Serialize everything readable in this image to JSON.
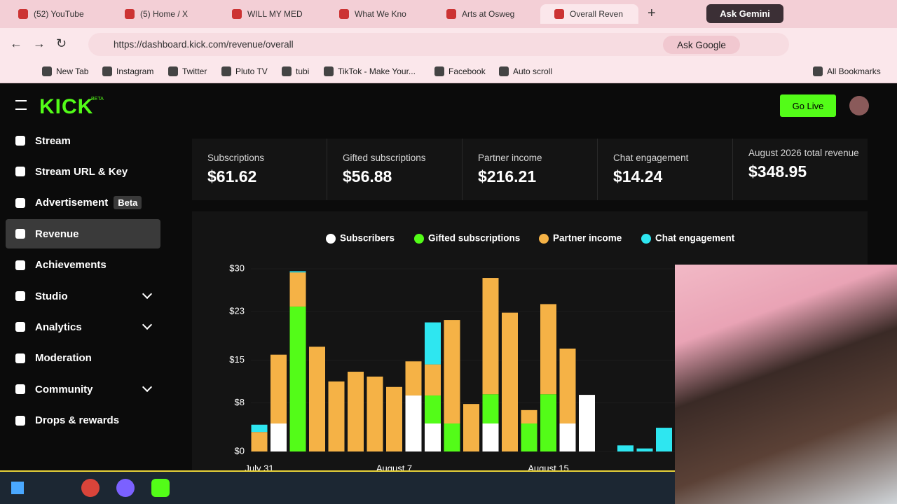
{
  "browser": {
    "tabs": [
      "(52) YouTube",
      "(5) Home / X",
      "WILL MY MED",
      "What We Kno",
      "Arts at Osweg",
      "Overall Reven"
    ],
    "gemini": "Ask Gemini",
    "url": "https://dashboard.kick.com/revenue/overall",
    "ask_google": "Ask Google",
    "bookmarks": [
      "New Tab",
      "Instagram",
      "Twitter",
      "Pluto TV",
      "tubi",
      "TikTok - Make Your...",
      "Facebook",
      "Auto scroll"
    ],
    "all_bookmarks": "All Bookmarks"
  },
  "header": {
    "logo": "KICK",
    "logo_badge": "BETA",
    "go_live": "Go Live"
  },
  "sidebar": {
    "items": [
      "Stream",
      "Stream URL & Key",
      "Advertisement",
      "Revenue",
      "Achievements",
      "Studio",
      "Analytics",
      "Moderation",
      "Community",
      "Drops & rewards"
    ],
    "badge": "Beta"
  },
  "stats": [
    {
      "label": "Subscriptions",
      "value": "$61.62"
    },
    {
      "label": "Gifted subscriptions",
      "value": "$56.88"
    },
    {
      "label": "Partner income",
      "value": "$216.21"
    },
    {
      "label": "Chat engagement",
      "value": "$14.24"
    },
    {
      "label": "August 2026 total revenue",
      "value": "$348.95"
    }
  ],
  "chart_data": {
    "type": "bar",
    "stacked": true,
    "categories": [
      "July 31",
      null,
      null,
      null,
      null,
      null,
      null,
      "August 7",
      null,
      null,
      null,
      null,
      null,
      null,
      null,
      "August 15",
      null,
      null,
      null,
      null,
      null,
      null
    ],
    "series": [
      {
        "name": "Subscribers",
        "color": "#ffffff",
        "values": [
          0,
          4.6,
          0,
          0,
          0,
          0,
          0,
          0,
          9.2,
          4.6,
          0,
          0,
          4.6,
          0,
          0,
          0,
          4.6,
          9.3,
          0,
          0,
          0,
          0
        ]
      },
      {
        "name": "Gifted subscriptions",
        "color": "#53fc18",
        "values": [
          0,
          0,
          23.8,
          0,
          0,
          0,
          0,
          0,
          0,
          4.6,
          4.6,
          0,
          4.8,
          0,
          4.6,
          9.4,
          0,
          0,
          0,
          0,
          0,
          0
        ]
      },
      {
        "name": "Partner income",
        "color": "#f5b246",
        "values": [
          3.2,
          11.3,
          5.6,
          17.2,
          11.5,
          13.1,
          12.3,
          10.6,
          5.6,
          5.1,
          17.0,
          7.8,
          19.1,
          22.8,
          2.2,
          14.8,
          12.3,
          0,
          0,
          0,
          0,
          0
        ]
      },
      {
        "name": "Chat engagement",
        "color": "#2ee6f0",
        "values": [
          1.2,
          0,
          0.2,
          0,
          0,
          0,
          0,
          0,
          0,
          6.9,
          0,
          0,
          0,
          0,
          0,
          0,
          0,
          0,
          0,
          1.0,
          0.5,
          3.9
        ]
      }
    ],
    "ylim": [
      0,
      30
    ],
    "yticks": [
      {
        "value": 0,
        "label": "$0"
      },
      {
        "value": 8,
        "label": "$8"
      },
      {
        "value": 15,
        "label": "$15"
      },
      {
        "value": 23,
        "label": "$23"
      },
      {
        "value": 30,
        "label": "$30"
      }
    ]
  }
}
